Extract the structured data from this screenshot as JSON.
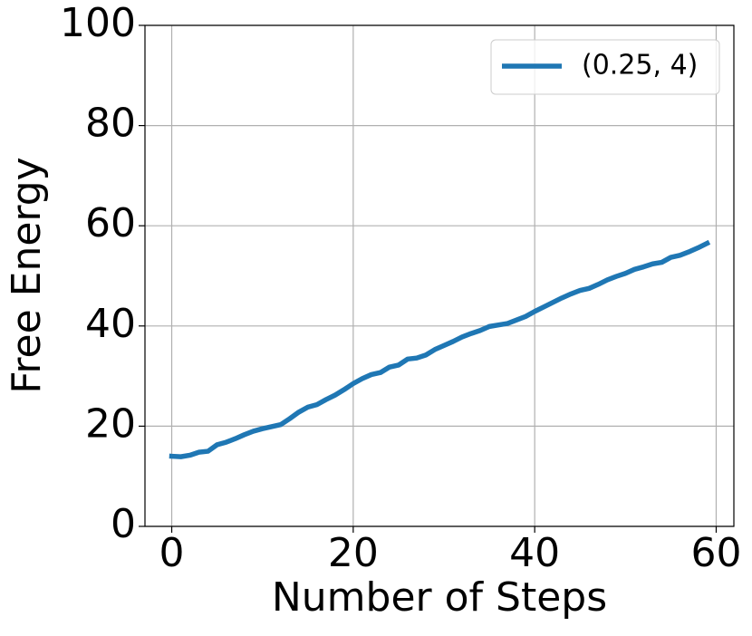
{
  "chart_data": {
    "type": "line",
    "xlabel": "Number of Steps",
    "ylabel": "Free Energy",
    "x": [
      0,
      1,
      2,
      3,
      4,
      5,
      6,
      7,
      8,
      9,
      10,
      11,
      12,
      13,
      14,
      15,
      16,
      17,
      18,
      19,
      20,
      21,
      22,
      23,
      24,
      25,
      26,
      27,
      28,
      29,
      30,
      31,
      32,
      33,
      34,
      35,
      36,
      37,
      38,
      39,
      40,
      41,
      42,
      43,
      44,
      45,
      46,
      47,
      48,
      49,
      50,
      51,
      52,
      53,
      54,
      55,
      56,
      57,
      58,
      59
    ],
    "series": [
      {
        "name": "(0.25, 4)",
        "color": "#1f77b4",
        "values": [
          14,
          13.9,
          14.2,
          14.8,
          15,
          16.3,
          16.8,
          17.5,
          18.3,
          19,
          19.5,
          19.9,
          20.3,
          21.5,
          22.8,
          23.8,
          24.3,
          25.3,
          26.2,
          27.3,
          28.5,
          29.5,
          30.3,
          30.7,
          31.8,
          32.2,
          33.4,
          33.6,
          34.2,
          35.3,
          36.1,
          36.9,
          37.8,
          38.5,
          39.1,
          39.9,
          40.2,
          40.5,
          41.2,
          41.9,
          42.9,
          43.8,
          44.7,
          45.6,
          46.4,
          47.1,
          47.5,
          48.3,
          49.2,
          49.9,
          50.5,
          51.3,
          51.8,
          52.4,
          52.7,
          53.7,
          54.1,
          54.8,
          55.6,
          56.5
        ]
      }
    ],
    "xlim": [
      -2.95,
      61.95
    ],
    "xticks": [
      0,
      20,
      40,
      60
    ],
    "ylim": [
      0,
      100
    ],
    "yticks": [
      0,
      20,
      40,
      60,
      80,
      100
    ],
    "grid": true,
    "legend": "upper right"
  }
}
